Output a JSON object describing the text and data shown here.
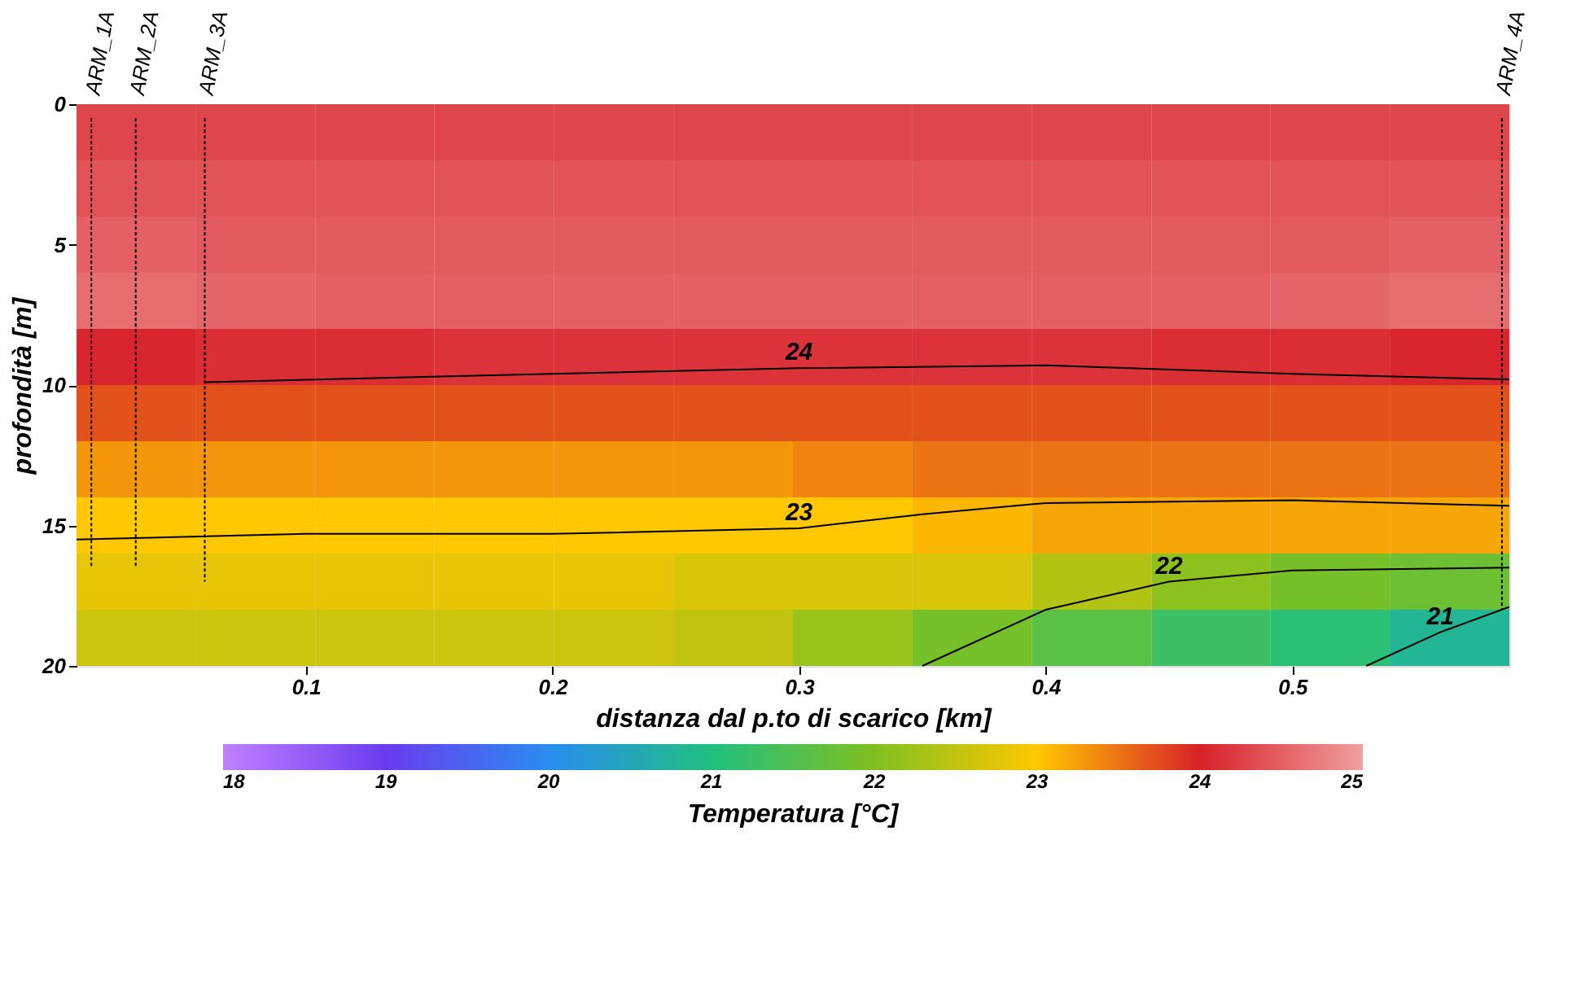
{
  "chart_data": {
    "type": "heatmap",
    "xlabel": "distanza dal p.to di scarico [km]",
    "ylabel": "profondità [m]",
    "legend_title": "Temperatura [°C]",
    "x": [
      0.031,
      0.08,
      0.128,
      0.176,
      0.225,
      0.273,
      0.322,
      0.37,
      0.419,
      0.467,
      0.515,
      0.564
    ],
    "y": [
      1,
      3,
      5,
      7,
      9,
      11,
      13,
      15,
      17,
      19
    ],
    "cells": [
      [
        24.3,
        24.3,
        24.3,
        24.3,
        24.3,
        24.3,
        24.3,
        24.3,
        24.3,
        24.3,
        24.3,
        24.3
      ],
      [
        24.4,
        24.4,
        24.4,
        24.4,
        24.4,
        24.4,
        24.4,
        24.4,
        24.4,
        24.4,
        24.4,
        24.4
      ],
      [
        24.5,
        24.45,
        24.45,
        24.45,
        24.45,
        24.45,
        24.45,
        24.45,
        24.45,
        24.45,
        24.45,
        24.5
      ],
      [
        24.6,
        24.55,
        24.5,
        24.5,
        24.5,
        24.5,
        24.5,
        24.5,
        24.5,
        24.5,
        24.55,
        24.6
      ],
      [
        24.05,
        24.1,
        24.1,
        24.15,
        24.15,
        24.15,
        24.15,
        24.15,
        24.15,
        24.1,
        24.1,
        24.05
      ],
      [
        23.7,
        23.7,
        23.7,
        23.7,
        23.7,
        23.7,
        23.7,
        23.7,
        23.7,
        23.7,
        23.7,
        23.7
      ],
      [
        23.3,
        23.3,
        23.3,
        23.3,
        23.3,
        23.3,
        23.4,
        23.5,
        23.5,
        23.5,
        23.5,
        23.5
      ],
      [
        23.0,
        23.0,
        23.0,
        23.0,
        23.0,
        23.0,
        23.0,
        23.1,
        23.2,
        23.2,
        23.2,
        23.2
      ],
      [
        22.8,
        22.8,
        22.8,
        22.8,
        22.8,
        22.7,
        22.7,
        22.7,
        22.4,
        22.1,
        21.9,
        21.8
      ],
      [
        22.6,
        22.6,
        22.6,
        22.6,
        22.6,
        22.5,
        22.2,
        21.9,
        21.6,
        21.3,
        21.1,
        20.8
      ]
    ],
    "xlim": [
      0.007,
      0.588
    ],
    "xticks": [
      0.1,
      0.2,
      0.3,
      0.4,
      0.5
    ],
    "ylim": [
      20,
      0
    ],
    "yticks": [
      0,
      5,
      10,
      15,
      20
    ],
    "clim": [
      18,
      25
    ],
    "cticks": [
      18,
      19,
      20,
      21,
      22,
      23,
      24,
      25
    ],
    "grid": false,
    "series": [
      {
        "type": "line",
        "color": "#000000",
        "line_style": "solid",
        "x": [
          0.059,
          0.2,
          0.3,
          0.4,
          0.5,
          0.588
        ],
        "values": [
          9.9,
          9.6,
          9.4,
          9.3,
          9.6,
          9.8
        ]
      },
      {
        "type": "line",
        "color": "#000000",
        "line_style": "solid",
        "x": [
          0.007,
          0.1,
          0.2,
          0.3,
          0.35,
          0.4,
          0.5,
          0.588
        ],
        "values": [
          15.5,
          15.3,
          15.3,
          15.1,
          14.6,
          14.2,
          14.1,
          14.3
        ]
      },
      {
        "type": "line",
        "color": "#000000",
        "line_style": "solid",
        "x": [
          0.35,
          0.4,
          0.45,
          0.5,
          0.588
        ],
        "values": [
          20,
          18.0,
          17.0,
          16.6,
          16.5
        ]
      },
      {
        "type": "line",
        "color": "#000000",
        "line_style": "solid",
        "x": [
          0.53,
          0.56,
          0.588
        ],
        "values": [
          20,
          18.8,
          17.9
        ]
      },
      {
        "type": "line",
        "name": "ARM_1A",
        "color": "#000000",
        "line_style": "dotted",
        "x": [
          0.013,
          0.013
        ],
        "values": [
          0.5,
          16.5
        ]
      },
      {
        "type": "line",
        "name": "ARM_2A",
        "color": "#000000",
        "line_style": "dotted",
        "x": [
          0.031,
          0.031
        ],
        "values": [
          0.5,
          16.5
        ]
      },
      {
        "type": "line",
        "name": "ARM_3A",
        "color": "#000000",
        "line_style": "dotted",
        "x": [
          0.059,
          0.059
        ],
        "values": [
          0.5,
          17.0
        ]
      },
      {
        "type": "line",
        "name": "ARM_4A",
        "color": "#000000",
        "line_style": "dotted",
        "x": [
          0.585,
          0.585
        ],
        "values": [
          0.5,
          18.0
        ]
      }
    ],
    "annotations": [
      {
        "text": "24",
        "x": 0.3,
        "y": 9.4
      },
      {
        "text": "23",
        "x": 0.3,
        "y": 15.1
      },
      {
        "text": "22",
        "x": 0.45,
        "y": 17.0
      },
      {
        "text": "21",
        "x": 0.56,
        "y": 18.8
      }
    ]
  }
}
